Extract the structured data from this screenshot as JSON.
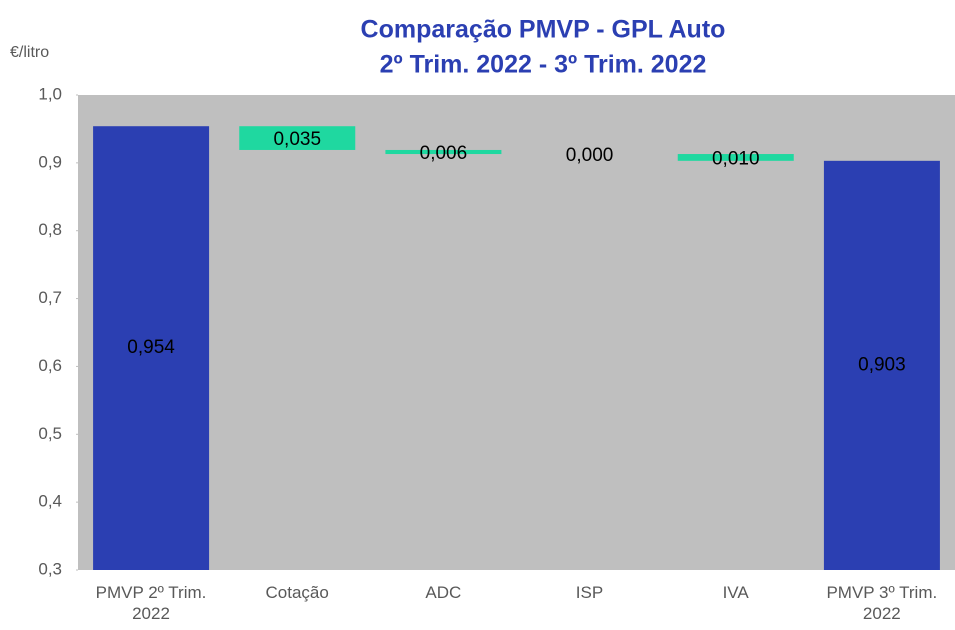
{
  "chart_data": {
    "type": "waterfall",
    "title": "Comparação PMVP - GPL Auto",
    "subtitle": "2º Trim. 2022 - 3º Trim. 2022",
    "y_label": "€/litro",
    "categories": [
      "PMVP 2º Trim. 2022",
      "Cotação",
      "ADC",
      "ISP",
      "IVA",
      "PMVP 3º Trim. 2022"
    ],
    "values": [
      0.954,
      -0.035,
      -0.006,
      0,
      -0.01,
      0.903
    ],
    "value_labels": [
      "0,954",
      "0,035",
      "0,006",
      "0,000",
      "0,010",
      "0,903"
    ],
    "total_color": "#2b3fb2",
    "delta_color": "#1fd8a0",
    "plot_background": "#bfbfbf",
    "ylim": [
      0.3,
      1.0
    ],
    "yticks": [
      {
        "value": 0.3,
        "label": "0,3"
      },
      {
        "value": 0.4,
        "label": "0,4"
      },
      {
        "value": 0.5,
        "label": "0,5"
      },
      {
        "value": 0.6,
        "label": "0,6"
      },
      {
        "value": 0.7,
        "label": "0,7"
      },
      {
        "value": 0.8,
        "label": "0,8"
      },
      {
        "value": 0.9,
        "label": "0,9"
      },
      {
        "value": 1.0,
        "label": "1,0"
      }
    ]
  }
}
